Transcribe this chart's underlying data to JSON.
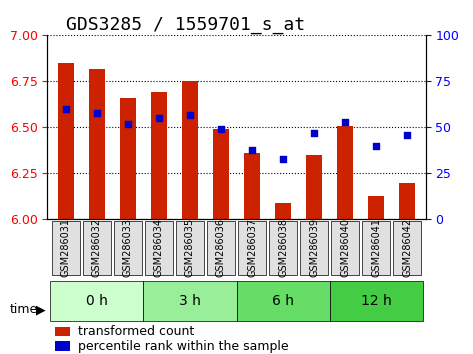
{
  "title": "GDS3285 / 1559701_s_at",
  "samples": [
    "GSM286031",
    "GSM286032",
    "GSM286033",
    "GSM286034",
    "GSM286035",
    "GSM286036",
    "GSM286037",
    "GSM286038",
    "GSM286039",
    "GSM286040",
    "GSM286041",
    "GSM286042"
  ],
  "transformed_count": [
    6.85,
    6.82,
    6.66,
    6.69,
    6.75,
    6.49,
    6.36,
    6.09,
    6.35,
    6.51,
    6.13,
    6.2
  ],
  "percentile_rank": [
    60,
    58,
    52,
    55,
    57,
    49,
    38,
    33,
    47,
    53,
    40,
    46
  ],
  "groups": [
    {
      "label": "0 h",
      "start": 0,
      "end": 3,
      "color": "#ccffcc"
    },
    {
      "label": "3 h",
      "start": 3,
      "end": 6,
      "color": "#99ee99"
    },
    {
      "label": "6 h",
      "start": 6,
      "end": 9,
      "color": "#66dd66"
    },
    {
      "label": "12 h",
      "start": 9,
      "end": 12,
      "color": "#44cc44"
    }
  ],
  "ylim_left": [
    6.0,
    7.0
  ],
  "ylim_right": [
    0,
    100
  ],
  "yticks_left": [
    6.0,
    6.25,
    6.5,
    6.75,
    7.0
  ],
  "yticks_right": [
    0,
    25,
    50,
    75,
    100
  ],
  "bar_color": "#cc2200",
  "dot_color": "#0000cc",
  "bar_width": 0.5,
  "title_fontsize": 13,
  "tick_fontsize": 9,
  "label_fontsize": 9,
  "group_label_fontsize": 10
}
